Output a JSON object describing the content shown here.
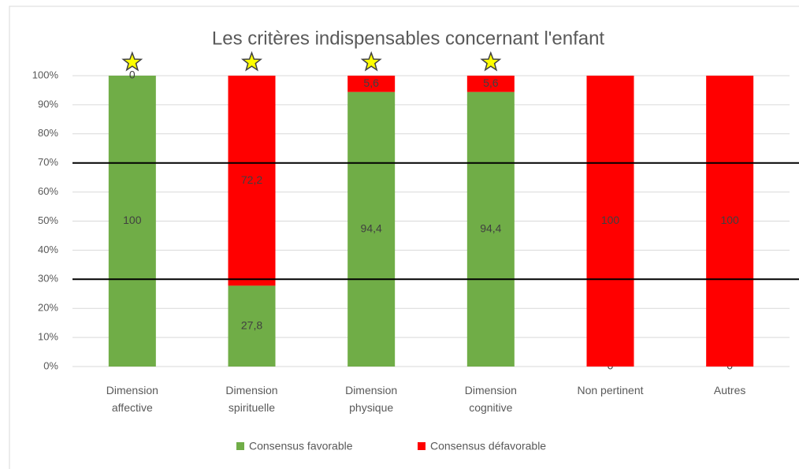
{
  "chart_data": {
    "type": "stacked_bar",
    "title": "Les critères indispensables concernant l'enfant",
    "categories": [
      "Dimension affective",
      "Dimension spirituelle",
      "Dimension physique",
      "Dimension cognitive",
      "Non pertinent",
      "Autres"
    ],
    "series": [
      {
        "name": "Consensus favorable",
        "color": "#70ad47",
        "values": [
          100,
          27.8,
          94.4,
          94.4,
          0,
          0
        ],
        "value_labels": [
          "100",
          "27,8",
          "94,4",
          "94,4",
          "0",
          "0"
        ]
      },
      {
        "name": "Consensus défavorable",
        "color": "#ff0000",
        "values": [
          0,
          72.2,
          5.6,
          5.6,
          100,
          100
        ],
        "value_labels": [
          "0",
          "72,2",
          "5,6",
          "5,6",
          "100",
          "100"
        ]
      }
    ],
    "ylim": [
      0,
      100
    ],
    "yticks": [
      {
        "value": 0,
        "label": "0%"
      },
      {
        "value": 10,
        "label": "10%"
      },
      {
        "value": 20,
        "label": "20%"
      },
      {
        "value": 30,
        "label": "30%"
      },
      {
        "value": 40,
        "label": "40%"
      },
      {
        "value": 50,
        "label": "50%"
      },
      {
        "value": 60,
        "label": "60%"
      },
      {
        "value": 70,
        "label": "70%"
      },
      {
        "value": 80,
        "label": "80%"
      },
      {
        "value": 90,
        "label": "90%"
      },
      {
        "value": 100,
        "label": "100%"
      }
    ],
    "reference_lines": [
      70,
      30
    ],
    "starred": [
      true,
      true,
      true,
      true,
      false,
      false
    ],
    "grid": true,
    "legend": "bottom"
  }
}
